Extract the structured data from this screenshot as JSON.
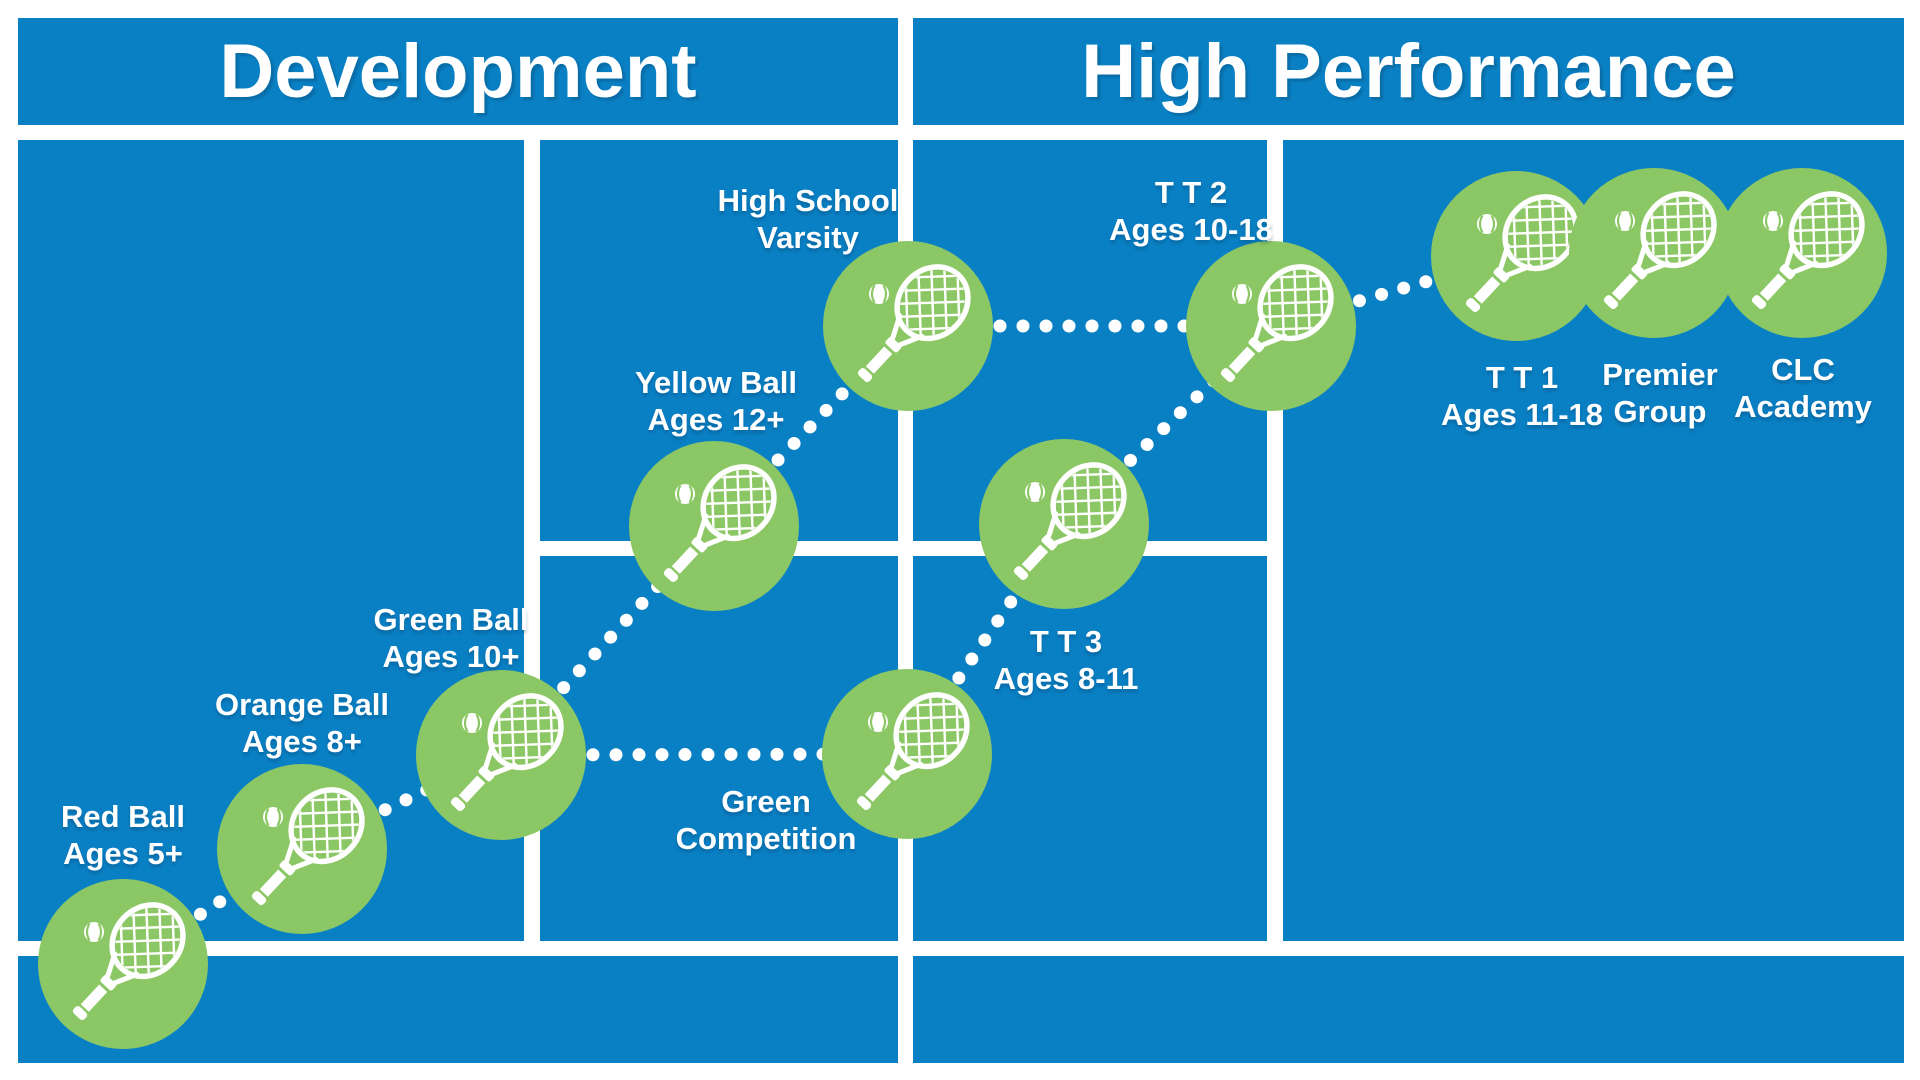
{
  "palette": {
    "court_blue": "#0a80c4",
    "circle_green": "#8cc765",
    "line_white": "#ffffff",
    "text_white": "#ffffff"
  },
  "sections": [
    {
      "id": "development",
      "label": "Development"
    },
    {
      "id": "high_performance",
      "label": "High Performance"
    }
  ],
  "stages": [
    {
      "id": "red-ball",
      "section": "Development",
      "title": "Red Ball",
      "subtitle": "Ages 5+"
    },
    {
      "id": "orange-ball",
      "section": "Development",
      "title": "Orange Ball",
      "subtitle": "Ages 8+"
    },
    {
      "id": "green-ball",
      "section": "Development",
      "title": "Green Ball",
      "subtitle": "Ages 10+"
    },
    {
      "id": "yellow-ball",
      "section": "Development",
      "title": "Yellow Ball",
      "subtitle": "Ages 12+"
    },
    {
      "id": "high-school-varsity",
      "section": "Development",
      "title": "High School",
      "subtitle": "Varsity"
    },
    {
      "id": "green-competition",
      "section": "Development",
      "title": "Green",
      "subtitle": "Competition"
    },
    {
      "id": "tt3",
      "section": "High Performance",
      "title": "T T 3",
      "subtitle": "Ages 8-11"
    },
    {
      "id": "tt2",
      "section": "High Performance",
      "title": "T T 2",
      "subtitle": "Ages 10-18"
    },
    {
      "id": "tt1",
      "section": "High Performance",
      "title": "T T 1",
      "subtitle": "Ages 11-18"
    },
    {
      "id": "premier-group",
      "section": "High Performance",
      "title": "Premier",
      "subtitle": "Group"
    },
    {
      "id": "clc-academy",
      "section": "High Performance",
      "title": "CLC",
      "subtitle": "Academy"
    }
  ],
  "connections": [
    {
      "from": "red-ball",
      "to": "orange-ball"
    },
    {
      "from": "orange-ball",
      "to": "green-ball"
    },
    {
      "from": "green-ball",
      "to": "yellow-ball"
    },
    {
      "from": "yellow-ball",
      "to": "high-school-varsity"
    },
    {
      "from": "green-ball",
      "to": "green-competition"
    },
    {
      "from": "green-competition",
      "to": "tt3"
    },
    {
      "from": "tt3",
      "to": "tt2"
    },
    {
      "from": "high-school-varsity",
      "to": "tt2"
    },
    {
      "from": "tt2",
      "to": "tt1"
    }
  ],
  "icons": {
    "stage_icon": "tennis-racket-icon",
    "ball_icon": "tennis-ball-icon"
  }
}
